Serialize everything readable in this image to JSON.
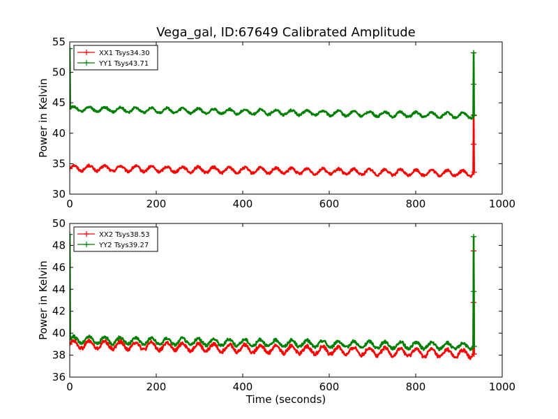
{
  "chart_data": {
    "type": "line",
    "title": "Vega_gal, ID:67649 Calibrated Amplitude",
    "xlabel": "Time (seconds)",
    "subplots": [
      {
        "ylabel": "Power in Kelvin",
        "xlim": [
          0,
          1000
        ],
        "ylim": [
          30,
          55
        ],
        "xticks": [
          "0",
          "200",
          "400",
          "600",
          "800",
          "1000"
        ],
        "yticks": [
          "30",
          "35",
          "40",
          "45",
          "50",
          "55"
        ],
        "show_x_axis_label": false,
        "legend": "top-left",
        "series": [
          {
            "name": "XX1 Tsys34.30",
            "color": "#ff0000",
            "start": {
              "x": 0,
              "y": 34.2
            },
            "spike": {
              "x": 934,
              "y": 43.0
            },
            "end": 33.6,
            "trend": {
              "from": 34.3,
              "to": 33.4
            },
            "ripple_amplitude": 0.45,
            "ripple_period": 36
          },
          {
            "name": "YY1 Tsys43.71",
            "color": "#008000",
            "start": {
              "x": 0,
              "y": 53.9
            },
            "spike": {
              "x": 934,
              "y": 53.2
            },
            "end": 42.9,
            "trend": {
              "from": 44.0,
              "to": 42.9
            },
            "ripple_amplitude": 0.4,
            "ripple_period": 36
          }
        ]
      },
      {
        "ylabel": "Power in Kelvin",
        "xlim": [
          0,
          1000
        ],
        "ylim": [
          36,
          50
        ],
        "xticks": [
          "0",
          "200",
          "400",
          "600",
          "800",
          "1000"
        ],
        "yticks": [
          "36",
          "38",
          "40",
          "42",
          "44",
          "46",
          "48",
          "50"
        ],
        "show_x_axis_label": true,
        "legend": "top-left",
        "series": [
          {
            "name": "XX2 Tsys38.53",
            "color": "#ff0000",
            "start": {
              "x": 0,
              "y": 39.0
            },
            "spike": {
              "x": 934,
              "y": 47.5
            },
            "end": 38.1,
            "trend": {
              "from": 39.0,
              "to": 38.1
            },
            "ripple_amplitude": 0.35,
            "ripple_period": 36
          },
          {
            "name": "YY2 Tsys39.27",
            "color": "#008000",
            "start": {
              "x": 0,
              "y": 49.0
            },
            "spike": {
              "x": 934,
              "y": 48.8
            },
            "end": 38.8,
            "trend": {
              "from": 39.4,
              "to": 38.8
            },
            "ripple_amplitude": 0.3,
            "ripple_period": 36
          }
        ]
      }
    ]
  }
}
